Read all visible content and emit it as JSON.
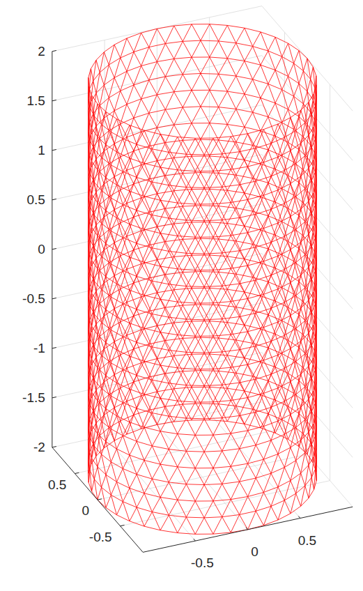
{
  "chart_data": {
    "type": "mesh3d",
    "surface": {
      "shape": "cylinder",
      "radius": 1,
      "z": [
        -2,
        2
      ],
      "segments": 40,
      "layers": 24
    },
    "color": "#ff0000",
    "xlim": [
      -1,
      1
    ],
    "ylim": [
      -1,
      1
    ],
    "zlim": [
      -2,
      2
    ],
    "xticks": [
      -0.5,
      0,
      0.5
    ],
    "yticks": [
      -0.5,
      0,
      0.5
    ],
    "zticks": [
      -2,
      -1.5,
      -1,
      -0.5,
      0,
      0.5,
      1,
      1.5,
      2
    ],
    "grid": true
  }
}
